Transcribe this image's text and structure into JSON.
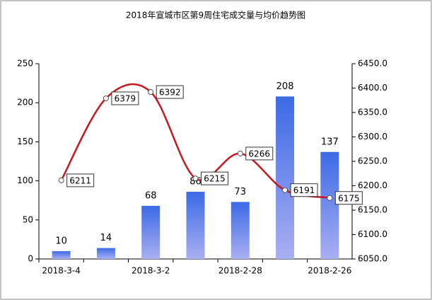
{
  "chart_data": {
    "type": "bar_line",
    "title": "2018年宣城市区第9周住宅成交量与均价趋势图",
    "categories": [
      "2018-3-4",
      null,
      "2018-3-2",
      null,
      "2018-2-28",
      null,
      "2018-2-26"
    ],
    "series": [
      {
        "type": "bar",
        "color": "#4a74e8",
        "values": [
          10,
          14,
          68,
          86,
          73,
          208,
          137
        ]
      },
      {
        "type": "line",
        "axis": "y2",
        "color": "#c8161d",
        "values": [
          6211,
          6379,
          6392,
          6215,
          6266,
          6191,
          6175
        ]
      }
    ],
    "ylim": [
      0,
      250
    ],
    "yticks": [
      0,
      50,
      100,
      150,
      200,
      250
    ],
    "y2lim": [
      6050,
      6450
    ],
    "y2ticks": [
      {
        "value": 6050,
        "label": "6050.0"
      },
      {
        "value": 6100,
        "label": "6100.0"
      },
      {
        "value": 6150,
        "label": "6150.0"
      },
      {
        "value": 6200,
        "label": "6200.0"
      },
      {
        "value": 6250,
        "label": "6250.0"
      },
      {
        "value": 6300,
        "label": "6300.0"
      },
      {
        "value": 6350,
        "label": "6350.0"
      },
      {
        "value": 6400,
        "label": "6400.0"
      },
      {
        "value": 6450,
        "label": "6450.0"
      }
    ]
  }
}
